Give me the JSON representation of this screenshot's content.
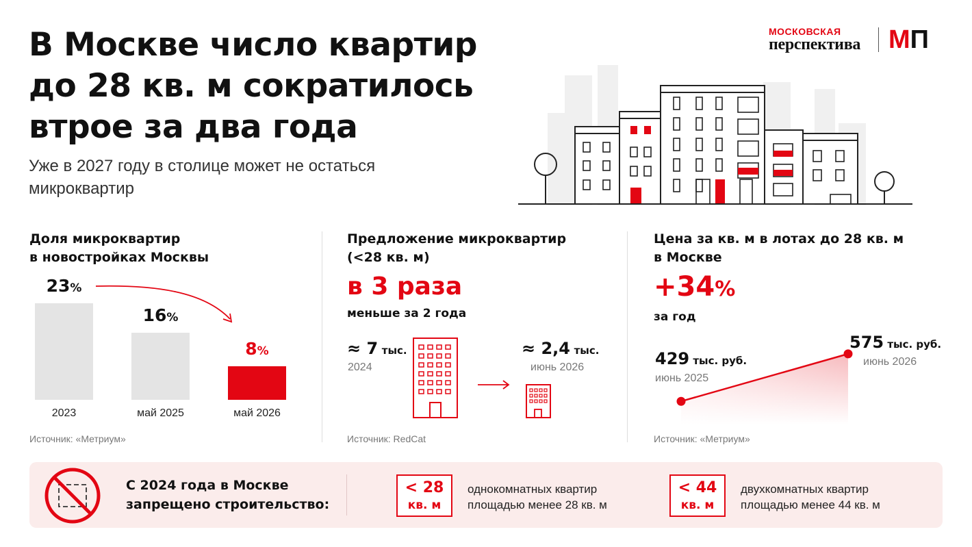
{
  "header": {
    "title": "В Москве число квартир до 28 кв. м сократилось втрое за два года",
    "subtitle": "Уже в 2027 году в столице может не остаться микроквартир"
  },
  "logo": {
    "line1": "МОСКОВСКАЯ",
    "line2": "перспектива",
    "mark_left": "М",
    "mark_right": "П"
  },
  "colors": {
    "accent": "#e30613",
    "bar_gray": "#e4e4e4",
    "banner_bg": "#fbeceb"
  },
  "share_panel": {
    "title_line1": "Доля микроквартир",
    "title_line2": "в новостройках Москвы",
    "source": "Источник: «Метриум»"
  },
  "supply_panel": {
    "title_line1": "Предложение микроквартир",
    "title_line2": "(<28 кв. м)",
    "headline": "в 3 раза",
    "headline_sub": "меньше за 2 года",
    "from_value": "≈ 7",
    "from_unit": "тыс.",
    "from_label": "2024",
    "to_value": "≈ 2,4",
    "to_unit": "тыс.",
    "to_label": "июнь 2026",
    "source": "Источник: RedCat"
  },
  "price_panel": {
    "title_line1": "Цена за кв. м в лотах до 28 кв. м",
    "title_line2": "в Москве",
    "headline_num": "+34",
    "headline_pct": "%",
    "headline_sub": "за год",
    "source": "Источник: «Метриум»"
  },
  "chart_data": [
    {
      "type": "bar",
      "categories": [
        "2023",
        "май 2025",
        "май 2026"
      ],
      "values": [
        23,
        16,
        8
      ],
      "value_labels": [
        "23",
        "16",
        "8"
      ],
      "unit": "%",
      "highlight_index": 2,
      "ylim": [
        0,
        23
      ]
    },
    {
      "type": "line",
      "x": [
        "июнь 2025",
        "июнь 2026"
      ],
      "y": [
        429,
        575
      ],
      "point_labels": [
        "429",
        "575"
      ],
      "unit": "тыс. руб."
    }
  ],
  "banner": {
    "text_line1": "С 2024 года в Москве",
    "text_line2": "запрещено строительство:",
    "item1_value": "< 28",
    "item1_unit": "кв. м",
    "item1_desc_line1": "однокомнатных квартир",
    "item1_desc_line2": "площадью менее 28 кв. м",
    "item2_value": "< 44",
    "item2_unit": "кв. м",
    "item2_desc_line1": "двухкомнатных квартир",
    "item2_desc_line2": "площадью менее 44 кв. м",
    "icon": "no-construction-icon"
  }
}
